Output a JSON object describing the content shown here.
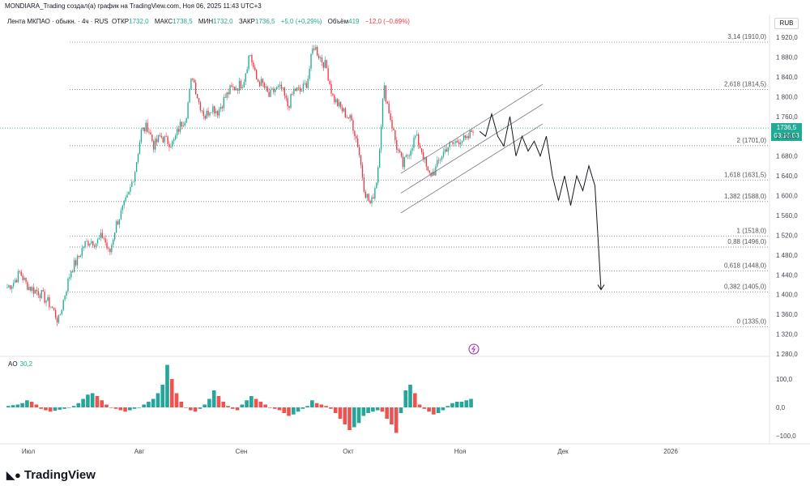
{
  "header": {
    "snapshot_text": "MONDIARA_Trading создал(а) график на TradingView.com, Ноя 06, 2025 11:43 UTC+3"
  },
  "legend": {
    "symbol": "Лента МКПАО · обыкн. · 4ч · RUS",
    "open_label": "ОТКР",
    "open_value": "1732,0",
    "high_label": "МАКС",
    "high_value": "1738,5",
    "low_label": "МИН",
    "low_value": "1732,0",
    "close_label": "ЗАКР",
    "close_value": "1736,5",
    "change": "+5,0 (+0,29%)",
    "volume_label": "Объём",
    "volume_value": "419",
    "volume_change": "−12,0 (−0,69%)"
  },
  "currency": "RUB",
  "price_tag": {
    "price": "1736,5",
    "countdown": "03:16:03"
  },
  "ao": {
    "label": "AO",
    "value": "30,2"
  },
  "brand": {
    "name": "TradingView"
  },
  "colors": {
    "up": "#22ab94",
    "down": "#f23645",
    "ao_up": "#26a69a",
    "ao_down": "#ef5350",
    "text": "#131722",
    "axis_text": "#434651",
    "drawing": "#131722"
  },
  "chart_data": {
    "type": "candlestick",
    "interval": "4h",
    "y_axis": {
      "min": 1280,
      "max": 1920,
      "ticks": [
        1920,
        1880,
        1840,
        1800,
        1760,
        1720,
        1680,
        1640,
        1600,
        1560,
        1520,
        1480,
        1440,
        1400,
        1360,
        1320,
        1280
      ],
      "tick_labels": [
        "1 920,0",
        "1 880,0",
        "1 840,0",
        "1 800,0",
        "1 760,0",
        "1 720,0",
        "1 680,0",
        "1 640,0",
        "1 600,0",
        "1 560,0",
        "1 520,0",
        "1 480,0",
        "1 440,0",
        "1 400,0",
        "1 360,0",
        "1 320,0",
        "1 280,0"
      ]
    },
    "x_axis": {
      "labels": [
        "Июл",
        "Авг",
        "Сен",
        "Окт",
        "Ноя",
        "Дек",
        "2026"
      ]
    },
    "price_path": [
      [
        "Июл",
        1415
      ],
      [
        "Июл",
        1425
      ],
      [
        "Июл",
        1445
      ],
      [
        "Июл",
        1420
      ],
      [
        "Июл",
        1410
      ],
      [
        "Июл",
        1405
      ],
      [
        "Июл",
        1390
      ],
      [
        "Июл",
        1375
      ],
      [
        "Июл",
        1345
      ],
      [
        "Июл",
        1400
      ],
      [
        "Июл",
        1450
      ],
      [
        "Июл",
        1470
      ],
      [
        "Июл",
        1500
      ],
      [
        "Июл",
        1510
      ],
      [
        "Июл",
        1505
      ],
      [
        "Июл",
        1520
      ],
      [
        "Июл",
        1480
      ],
      [
        "Июл",
        1540
      ],
      [
        "Июл",
        1570
      ],
      [
        "Июл",
        1600
      ],
      [
        "Авг",
        1650
      ],
      [
        "Авг",
        1730
      ],
      [
        "Авг",
        1740
      ],
      [
        "Авг",
        1700
      ],
      [
        "Авг",
        1720
      ],
      [
        "Авг",
        1710
      ],
      [
        "Авг",
        1705
      ],
      [
        "Авг",
        1740
      ],
      [
        "Авг",
        1760
      ],
      [
        "Авг",
        1845
      ],
      [
        "Авг",
        1790
      ],
      [
        "Авг",
        1760
      ],
      [
        "Авг",
        1780
      ],
      [
        "Авг",
        1770
      ],
      [
        "Сен",
        1795
      ],
      [
        "Сен",
        1815
      ],
      [
        "Сен",
        1820
      ],
      [
        "Сен",
        1830
      ],
      [
        "Сен",
        1890
      ],
      [
        "Сен",
        1835
      ],
      [
        "Сен",
        1825
      ],
      [
        "Сен",
        1800
      ],
      [
        "Сен",
        1815
      ],
      [
        "Сен",
        1815
      ],
      [
        "Сен",
        1780
      ],
      [
        "Сен",
        1815
      ],
      [
        "Сен",
        1810
      ],
      [
        "Сен",
        1830
      ],
      [
        "Сен",
        1905
      ],
      [
        "Сен",
        1880
      ],
      [
        "Окт",
        1860
      ],
      [
        "Окт",
        1800
      ],
      [
        "Окт",
        1780
      ],
      [
        "Окт",
        1765
      ],
      [
        "Окт",
        1750
      ],
      [
        "Окт",
        1700
      ],
      [
        "Окт",
        1610
      ],
      [
        "Окт",
        1580
      ],
      [
        "Окт",
        1640
      ],
      [
        "Окт",
        1820
      ],
      [
        "Окт",
        1760
      ],
      [
        "Окт",
        1700
      ],
      [
        "Окт",
        1660
      ],
      [
        "Окт",
        1690
      ],
      [
        "Окт",
        1720
      ],
      [
        "Окт",
        1690
      ],
      [
        "Окт",
        1640
      ],
      [
        "Окт",
        1650
      ],
      [
        "Окт",
        1680
      ],
      [
        "Окт",
        1700
      ],
      [
        "Окт",
        1705
      ],
      [
        "Окт",
        1715
      ],
      [
        "Ноя",
        1710
      ],
      [
        "Ноя",
        1736.5
      ]
    ],
    "candles_shown": {
      "low": 1335.0,
      "high": 1910.0,
      "last": 1736.5
    },
    "fibonacci_levels": [
      {
        "ratio": "3,14",
        "price": 1910.0,
        "label": "3,14 (1910,0)"
      },
      {
        "ratio": "2,618",
        "price": 1814.5,
        "label": "2,618 (1814,5)"
      },
      {
        "ratio": "2",
        "price": 1701.0,
        "label": "2 (1701,0)"
      },
      {
        "ratio": "1,618",
        "price": 1631.5,
        "label": "1,618 (1631,5)"
      },
      {
        "ratio": "1,382",
        "price": 1588.0,
        "label": "1,382 (1588,0)"
      },
      {
        "ratio": "1",
        "price": 1518.0,
        "label": "1 (1518,0)"
      },
      {
        "ratio": "0,88",
        "price": 1496.0,
        "label": "0,88 (1496,0)"
      },
      {
        "ratio": "0,618",
        "price": 1448.0,
        "label": "0,618 (1448,0)"
      },
      {
        "ratio": "0,382",
        "price": 1405.0,
        "label": "0,382 (1405,0)"
      },
      {
        "ratio": "0",
        "price": 1335.0,
        "label": "0 (1335,0)"
      }
    ],
    "projection_path": [
      1730,
      1720,
      1765,
      1720,
      1700,
      1760,
      1680,
      1720,
      1690,
      1710,
      1680,
      1720,
      1640,
      1590,
      1640,
      1580,
      1640,
      1610,
      1660,
      1620,
      1410
    ],
    "ao_indicator": {
      "axis": {
        "ticks": [
          100,
          0,
          -100
        ],
        "tick_labels": [
          "100,0",
          "0,0",
          "−100,0"
        ]
      },
      "values": [
        5,
        8,
        10,
        15,
        25,
        20,
        10,
        -5,
        -10,
        -15,
        -12,
        -8,
        -5,
        0,
        5,
        15,
        30,
        45,
        50,
        40,
        25,
        10,
        0,
        -5,
        -10,
        -15,
        -10,
        -5,
        0,
        10,
        20,
        30,
        50,
        80,
        150,
        100,
        50,
        20,
        0,
        -10,
        -15,
        -5,
        10,
        30,
        60,
        40,
        20,
        5,
        -5,
        -10,
        10,
        25,
        40,
        30,
        20,
        10,
        0,
        -5,
        -10,
        -20,
        -30,
        -25,
        -15,
        -5,
        5,
        25,
        15,
        10,
        5,
        -5,
        -20,
        -40,
        -60,
        -80,
        -70,
        -55,
        -30,
        -20,
        -15,
        -10,
        -15,
        -40,
        -60,
        -90,
        -20,
        60,
        80,
        50,
        10,
        -5,
        -15,
        -25,
        -20,
        -10,
        5,
        15,
        20,
        20,
        25,
        30
      ]
    },
    "grid": false,
    "title": ""
  }
}
